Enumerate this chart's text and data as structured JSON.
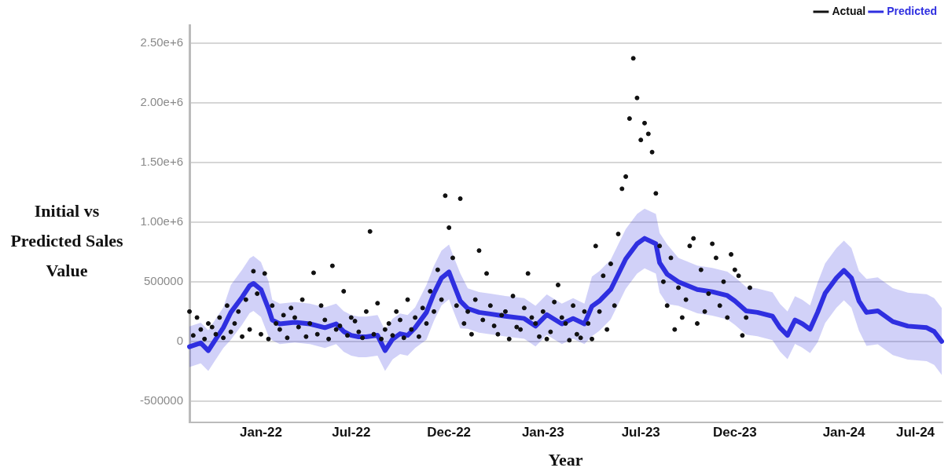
{
  "chart_data": {
    "type": "scatter",
    "xlabel": "Year",
    "ylabel": "Initial vs Predicted Sales Value",
    "legend": "top",
    "grid": "y",
    "marker": "circle",
    "categories": [
      null,
      null,
      null,
      null,
      null,
      null,
      null,
      null,
      null,
      null,
      null,
      null,
      null,
      null,
      null,
      null,
      null,
      null,
      null,
      "Jan-22",
      null,
      null,
      null,
      null,
      null,
      null,
      null,
      null,
      null,
      null,
      null,
      null,
      null,
      null,
      null,
      null,
      null,
      null,
      null,
      null,
      null,
      null,
      null,
      "Jul-22",
      null,
      null,
      null,
      null,
      null,
      null,
      null,
      null,
      null,
      null,
      null,
      null,
      null,
      null,
      null,
      null,
      null,
      null,
      null,
      null,
      null,
      null,
      null,
      null,
      null,
      "Dec-22",
      null,
      null,
      null,
      null,
      null,
      null,
      null,
      null,
      null,
      null,
      null,
      null,
      null,
      null,
      null,
      null,
      null,
      null,
      null,
      null,
      null,
      null,
      null,
      null,
      "Jan-23",
      null,
      null,
      null,
      null,
      null,
      null,
      null,
      null,
      null,
      null,
      null,
      null,
      null,
      null,
      null,
      null,
      null,
      null,
      null,
      null,
      null,
      null,
      null,
      null,
      null,
      "Jul-23",
      null,
      null,
      null,
      null,
      null,
      null,
      null,
      null,
      null,
      null,
      null,
      null,
      null,
      null,
      null,
      null,
      null,
      null,
      null,
      null,
      null,
      null,
      null,
      null,
      "Dec-23",
      null,
      null,
      null,
      null,
      null,
      null,
      null,
      null,
      null,
      null,
      null,
      null,
      null,
      null,
      null,
      null,
      null,
      null,
      null,
      null,
      null,
      null,
      null,
      null,
      null,
      null,
      null,
      null,
      "Jan-24",
      null,
      null,
      null,
      null,
      null,
      null,
      null,
      null,
      null,
      null,
      null,
      null,
      null,
      null,
      null,
      null,
      null,
      null,
      "Jul-24",
      null,
      null,
      null,
      null,
      null,
      null,
      null
    ],
    "ylim": [
      -680000,
      2650000
    ],
    "yticks": [
      -500000,
      0,
      500000,
      {
        "value": 1000000,
        "label": "1.00e+6"
      },
      {
        "value": 1500000,
        "label": "1.50e+6"
      },
      {
        "value": 2000000,
        "label": "2.00e+6"
      },
      {
        "value": 2500000,
        "label": "2.50e+6"
      }
    ],
    "series": [
      {
        "name": "Actual",
        "type": "scatter",
        "color": "#111111",
        "values": [
          250000,
          50000,
          200000,
          100000,
          20000,
          150000,
          120000,
          60000,
          200000,
          30000,
          300000,
          80000,
          150000,
          250000,
          40000,
          350000,
          100000,
          588000,
          400000,
          60000,
          569000,
          20000,
          300000,
          150000,
          100000,
          220000,
          30000,
          280000,
          200000,
          120000,
          350000,
          40000,
          150000,
          575000,
          60000,
          300000,
          180000,
          20000,
          633000,
          100000,
          130000,
          420000,
          50000,
          200000,
          170000,
          80000,
          30000,
          250000,
          921000,
          60000,
          320000,
          20000,
          100000,
          150000,
          50000,
          250000,
          180000,
          30000,
          350000,
          100000,
          200000,
          40000,
          280000,
          150000,
          420000,
          250000,
          600000,
          350000,
          1221000,
          953000,
          700000,
          300000,
          1196000,
          150000,
          250000,
          60000,
          350000,
          761000,
          180000,
          569000,
          300000,
          130000,
          60000,
          220000,
          250000,
          20000,
          380000,
          120000,
          100000,
          280000,
          569000,
          200000,
          150000,
          40000,
          250000,
          20000,
          80000,
          330000,
          473000,
          200000,
          150000,
          10000,
          300000,
          60000,
          30000,
          250000,
          150000,
          20000,
          799000,
          250000,
          550000,
          100000,
          650000,
          300000,
          900000,
          1279000,
          1381000,
          1867000,
          2372000,
          2040000,
          1688000,
          1829000,
          1739000,
          1586000,
          1240000,
          800000,
          500000,
          300000,
          700000,
          100000,
          450000,
          200000,
          350000,
          800000,
          863000,
          150000,
          600000,
          250000,
          400000,
          818000,
          700000,
          300000,
          500000,
          200000,
          729000,
          600000,
          550000,
          50000,
          200000,
          450000,
          null,
          null,
          null,
          null,
          null,
          null,
          null,
          null,
          null,
          null,
          null,
          null,
          null,
          null,
          null,
          null,
          null,
          null,
          null,
          null,
          null,
          null,
          null,
          null,
          null,
          null,
          null,
          null,
          null,
          null,
          null,
          null,
          null,
          null,
          null,
          null,
          null,
          null,
          null,
          null,
          null,
          null,
          null,
          null,
          null,
          null,
          null,
          null,
          null,
          null,
          null
        ]
      },
      {
        "name": "Predicted",
        "type": "line",
        "color": "#2f2fe0",
        "marker": "none",
        "values": [
          -45000,
          null,
          null,
          -13000,
          null,
          -77000,
          null,
          19000,
          null,
          115000,
          null,
          243000,
          null,
          null,
          371000,
          null,
          467000,
          486000,
          null,
          435000,
          null,
          275000,
          179000,
          null,
          147000,
          null,
          null,
          null,
          160000,
          null,
          null,
          null,
          147000,
          null,
          null,
          null,
          115000,
          null,
          null,
          147000,
          null,
          83000,
          null,
          51000,
          null,
          38000,
          null,
          38000,
          null,
          null,
          51000,
          -13000,
          -77000,
          null,
          19000,
          null,
          64000,
          null,
          51000,
          null,
          115000,
          null,
          null,
          243000,
          null,
          403000,
          null,
          531000,
          null,
          582000,
          499000,
          null,
          339000,
          null,
          275000,
          null,
          null,
          243000,
          null,
          null,
          230000,
          null,
          null,
          null,
          211000,
          null,
          null,
          null,
          null,
          192000,
          null,
          null,
          128000,
          null,
          null,
          224000,
          null,
          null,
          null,
          147000,
          null,
          null,
          192000,
          null,
          null,
          147000,
          null,
          294000,
          null,
          339000,
          null,
          null,
          435000,
          null,
          563000,
          null,
          691000,
          null,
          null,
          818000,
          null,
          863000,
          null,
          null,
          818000,
          659000,
          null,
          563000,
          null,
          null,
          499000,
          null,
          null,
          null,
          null,
          435000,
          null,
          null,
          null,
          416000,
          null,
          null,
          null,
          384000,
          null,
          339000,
          null,
          null,
          256000,
          null,
          null,
          243000,
          null,
          null,
          null,
          211000,
          null,
          115000,
          null,
          51000,
          null,
          179000,
          null,
          147000,
          null,
          102000,
          null,
          243000,
          null,
          403000,
          null,
          null,
          531000,
          null,
          595000,
          null,
          531000,
          null,
          339000,
          null,
          243000,
          null,
          null,
          256000,
          null,
          null,
          null,
          166000,
          null,
          null,
          null,
          128000,
          null,
          null,
          null,
          null,
          115000,
          null,
          83000,
          null,
          0
        ],
        "lower": [
          -215000,
          null,
          null,
          -183000,
          null,
          -247000,
          null,
          -151000,
          null,
          -55000,
          null,
          13000,
          null,
          null,
          141000,
          null,
          237000,
          256000,
          null,
          205000,
          null,
          45000,
          9000,
          null,
          -23000,
          null,
          null,
          null,
          -10000,
          null,
          null,
          null,
          -23000,
          null,
          null,
          null,
          -55000,
          null,
          null,
          -23000,
          null,
          -87000,
          null,
          -119000,
          null,
          -132000,
          null,
          -132000,
          null,
          null,
          -119000,
          -183000,
          -247000,
          null,
          -151000,
          null,
          -106000,
          null,
          -119000,
          null,
          -55000,
          null,
          null,
          13000,
          null,
          173000,
          null,
          301000,
          null,
          352000,
          269000,
          null,
          109000,
          null,
          105000,
          null,
          null,
          73000,
          null,
          null,
          60000,
          null,
          null,
          null,
          41000,
          null,
          null,
          null,
          null,
          22000,
          null,
          null,
          -42000,
          null,
          null,
          54000,
          null,
          null,
          null,
          -23000,
          null,
          null,
          22000,
          null,
          null,
          -23000,
          null,
          44000,
          null,
          89000,
          null,
          null,
          185000,
          null,
          313000,
          null,
          441000,
          null,
          null,
          568000,
          null,
          613000,
          null,
          null,
          568000,
          409000,
          null,
          313000,
          null,
          null,
          299000,
          null,
          null,
          null,
          null,
          235000,
          null,
          null,
          null,
          216000,
          null,
          null,
          null,
          184000,
          null,
          139000,
          null,
          null,
          56000,
          null,
          null,
          43000,
          null,
          null,
          null,
          11000,
          null,
          -85000,
          null,
          -149000,
          null,
          -21000,
          null,
          -53000,
          null,
          -98000,
          null,
          -7000,
          null,
          153000,
          null,
          null,
          281000,
          null,
          345000,
          null,
          281000,
          null,
          89000,
          null,
          -37000,
          null,
          null,
          -24000,
          null,
          null,
          null,
          -114000,
          null,
          null,
          null,
          -152000,
          null,
          null,
          null,
          null,
          -165000,
          null,
          -197000,
          null,
          -280000
        ],
        "upper": [
          125000,
          null,
          null,
          157000,
          null,
          93000,
          null,
          189000,
          null,
          285000,
          null,
          473000,
          null,
          null,
          601000,
          null,
          697000,
          716000,
          null,
          665000,
          null,
          505000,
          349000,
          null,
          317000,
          null,
          null,
          null,
          330000,
          null,
          null,
          null,
          317000,
          null,
          null,
          null,
          285000,
          null,
          null,
          317000,
          null,
          253000,
          null,
          221000,
          null,
          208000,
          null,
          208000,
          null,
          null,
          221000,
          157000,
          93000,
          null,
          189000,
          null,
          234000,
          null,
          221000,
          null,
          285000,
          null,
          null,
          473000,
          null,
          633000,
          null,
          761000,
          null,
          812000,
          729000,
          null,
          569000,
          null,
          445000,
          null,
          null,
          413000,
          null,
          null,
          400000,
          null,
          null,
          null,
          381000,
          null,
          null,
          null,
          null,
          362000,
          null,
          null,
          298000,
          null,
          null,
          394000,
          null,
          null,
          null,
          317000,
          null,
          null,
          362000,
          null,
          null,
          317000,
          null,
          544000,
          null,
          589000,
          null,
          null,
          685000,
          null,
          813000,
          null,
          941000,
          null,
          null,
          1068000,
          null,
          1113000,
          null,
          null,
          1068000,
          909000,
          null,
          813000,
          null,
          null,
          699000,
          null,
          null,
          null,
          null,
          635000,
          null,
          null,
          null,
          616000,
          null,
          null,
          null,
          584000,
          null,
          539000,
          null,
          null,
          456000,
          null,
          null,
          443000,
          null,
          null,
          null,
          411000,
          null,
          315000,
          null,
          251000,
          null,
          379000,
          null,
          347000,
          null,
          302000,
          null,
          493000,
          null,
          653000,
          null,
          null,
          781000,
          null,
          845000,
          null,
          781000,
          null,
          589000,
          null,
          523000,
          null,
          null,
          536000,
          null,
          null,
          null,
          446000,
          null,
          null,
          null,
          408000,
          null,
          null,
          null,
          null,
          395000,
          null,
          363000,
          null,
          280000
        ]
      }
    ]
  }
}
